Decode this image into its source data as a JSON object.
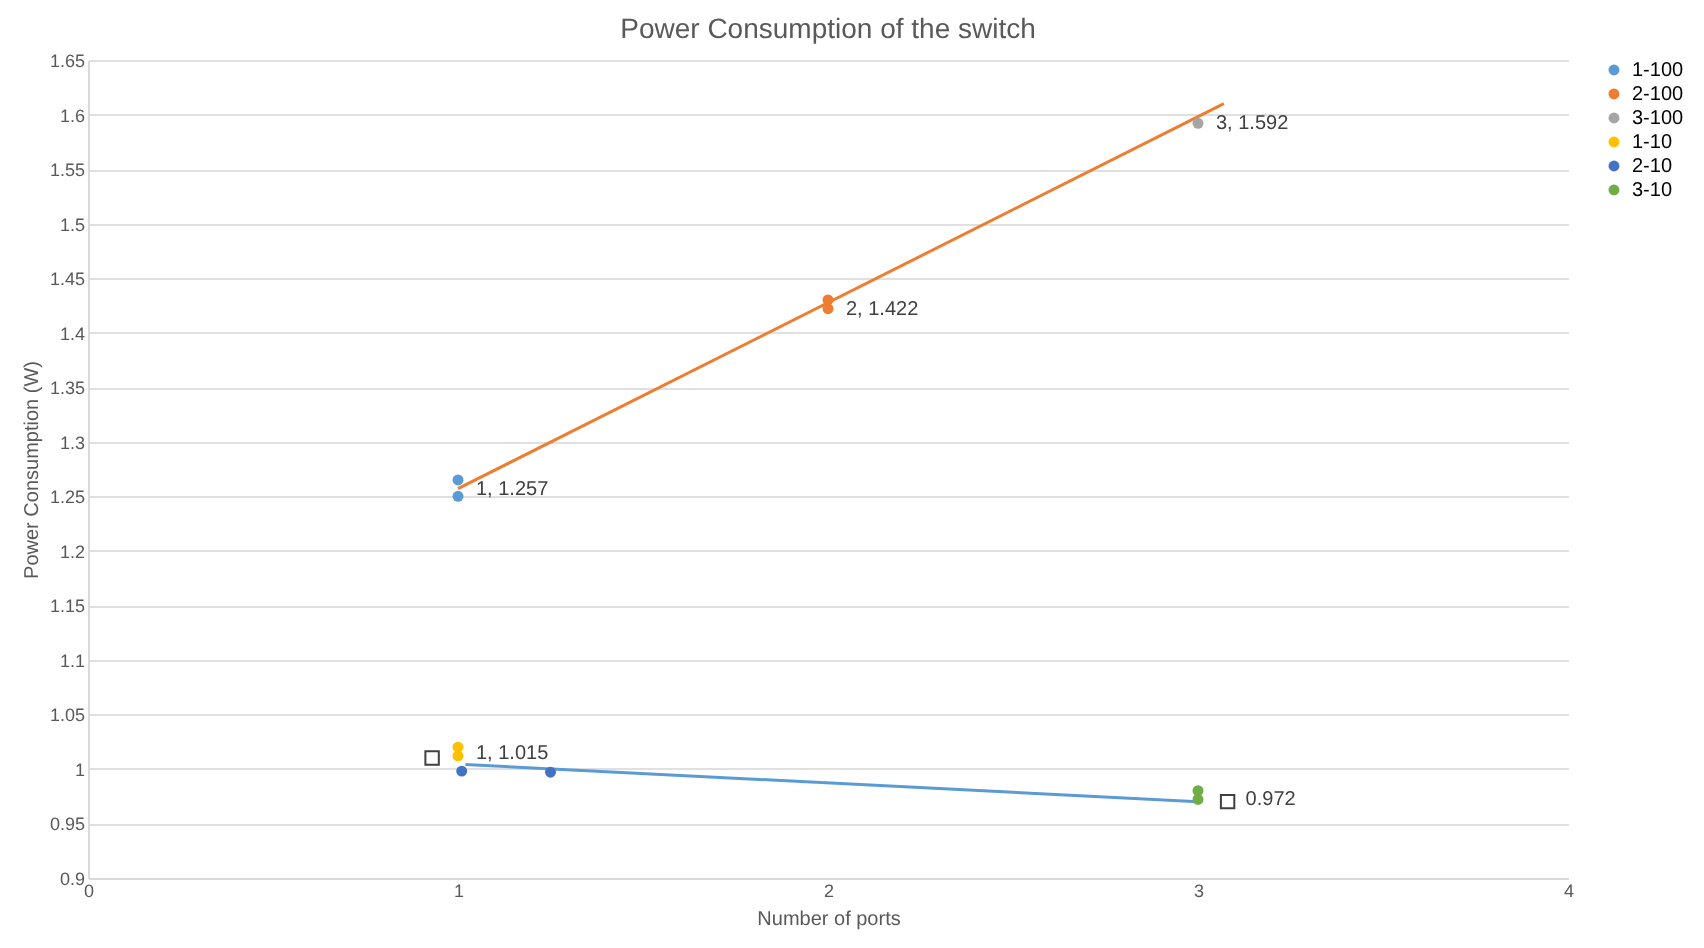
{
  "chart_data": {
    "type": "scatter",
    "title": "Power Consumption of the switch",
    "xlabel": "Number of ports",
    "ylabel": "Power Consumption (W)",
    "xlim": [
      0,
      4
    ],
    "xticks": [
      0,
      1,
      2,
      3,
      4
    ],
    "ylim": [
      0.9,
      1.65
    ],
    "yticks": [
      0.9,
      0.95,
      1,
      1.05,
      1.1,
      1.15,
      1.2,
      1.25,
      1.3,
      1.35,
      1.4,
      1.45,
      1.5,
      1.55,
      1.6,
      1.65
    ],
    "grid": "y",
    "legend": "right",
    "marker": "circle",
    "series": [
      {
        "name": "1-100",
        "color": "#5b9bd5",
        "x": [
          1,
          1
        ],
        "values": [
          1.25,
          1.265
        ]
      },
      {
        "name": "2-100",
        "color": "#ed7d31",
        "x": [
          2,
          2
        ],
        "values": [
          1.422,
          1.43
        ]
      },
      {
        "name": "3-100",
        "color": "#a5a5a5",
        "x": [
          3
        ],
        "values": [
          1.592
        ]
      },
      {
        "name": "1-10",
        "color": "#ffc000",
        "x": [
          1,
          1
        ],
        "values": [
          1.012,
          1.02
        ]
      },
      {
        "name": "2-10",
        "color": "#4472c4",
        "x": [
          1.01,
          1.25
        ],
        "values": [
          0.998,
          0.997
        ]
      },
      {
        "name": "3-10",
        "color": "#70ad47",
        "x": [
          3,
          3
        ],
        "values": [
          0.972,
          0.98
        ]
      },
      {
        "type": "line",
        "color": "#ed7d31",
        "marker": "none",
        "line_style": "solid",
        "x": [
          1,
          3.07
        ],
        "values": [
          1.257,
          1.61
        ]
      },
      {
        "type": "line",
        "color": "#5b9bd5",
        "marker": "none",
        "line_style": "solid",
        "x": [
          1.02,
          3
        ],
        "values": [
          1.004,
          0.97
        ]
      },
      {
        "color": "#404040",
        "marker": "square",
        "x": [
          0.93,
          3.08
        ],
        "values": [
          1.01,
          0.97
        ]
      }
    ],
    "annotations": [
      {
        "text": "1, 1.257",
        "x": 1,
        "y": 1.257
      },
      {
        "text": "2, 1.422",
        "x": 2,
        "y": 1.422
      },
      {
        "text": "3, 1.592",
        "x": 3,
        "y": 1.592
      },
      {
        "text": "1, 1.015",
        "x": 1,
        "y": 1.015
      },
      {
        "text": "0.972",
        "x": 3.08,
        "y": 0.972
      }
    ]
  }
}
